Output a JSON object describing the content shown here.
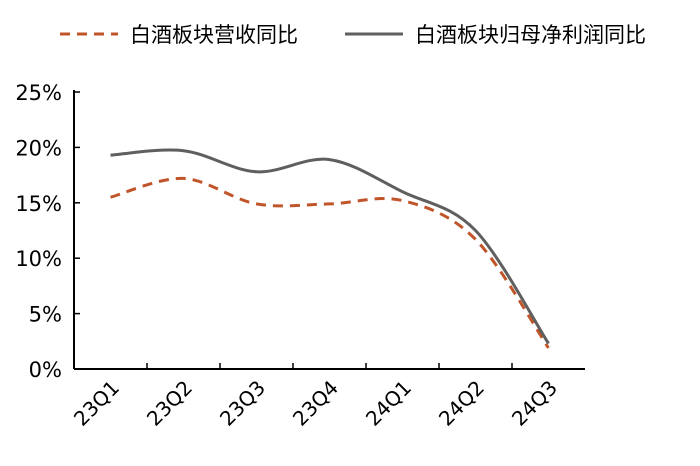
{
  "chart_data": {
    "type": "line",
    "categories": [
      "23Q1",
      "23Q2",
      "23Q3",
      "23Q4",
      "24Q1",
      "24Q2",
      "24Q3"
    ],
    "series": [
      {
        "name": "白酒板块营收同比",
        "values": [
          15.5,
          17.2,
          14.9,
          14.9,
          15.2,
          11.7,
          1.9
        ],
        "color": "#c0552a",
        "style": "dashed"
      },
      {
        "name": "白酒板块归母净利润同比",
        "values": [
          19.3,
          19.7,
          17.8,
          18.9,
          16.0,
          12.5,
          2.3
        ],
        "color": "#5f5f5f",
        "style": "solid"
      }
    ],
    "yticks": [
      "0%",
      "5%",
      "10%",
      "15%",
      "20%",
      "25%"
    ],
    "ylim": [
      0,
      25
    ],
    "grid": false,
    "legend_position": "top",
    "smooth": true
  }
}
